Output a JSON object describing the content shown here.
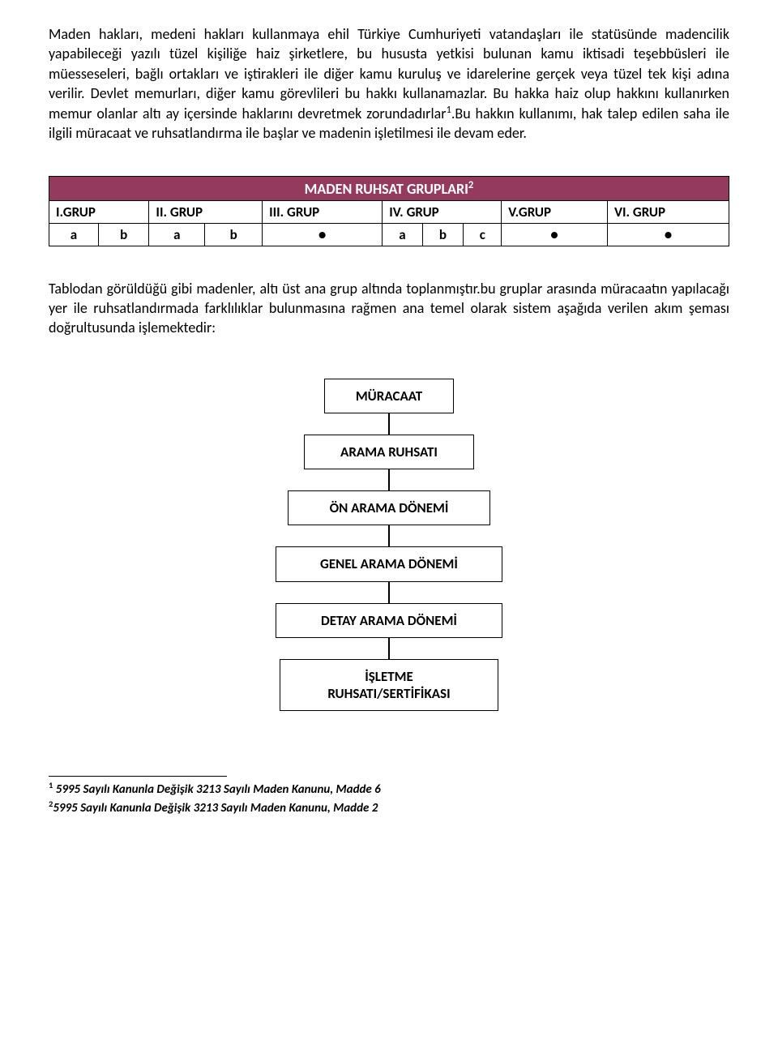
{
  "paragraph1": "Maden hakları, medeni hakları kullanmaya ehil Türkiye Cumhuriyeti vatandaşları ile statüsünde madencilik yapabileceği yazılı tüzel kişiliğe haiz şirketlere, bu hususta yetkisi bulunan kamu iktisadi teşebbüsleri ile müesseseleri, bağlı ortakları ve iştirakleri ile diğer kamu kuruluş ve idarelerine gerçek veya tüzel tek kişi adına verilir. Devlet memurları, diğer kamu görevlileri bu hakkı kullanamazlar. Bu hakka haiz olup hakkını kullanırken memur olanlar altı ay içersinde haklarını devretmek zorundadırlar",
  "paragraph1_tail": ".Bu hakkın kullanımı, hak talep edilen saha ile ilgili müracaat ve ruhsatlandırma ile başlar ve madenin işletilmesi ile devam eder.",
  "table": {
    "title": "MADEN RUHSAT GRUPLARI",
    "title_sup": "2",
    "header_bg": "#943a5f",
    "header_fg": "#ffffff",
    "groups": [
      "I.GRUP",
      "II. GRUP",
      "III. GRUP",
      "IV. GRUP",
      "V.GRUP",
      "VI. GRUP"
    ],
    "subrow": [
      "a",
      "b",
      "a",
      "b",
      "●",
      "a",
      "b",
      "c",
      "●",
      "●"
    ]
  },
  "paragraph2": "Tablodan görüldüğü gibi madenler, altı üst ana grup altında toplanmıştır.bu gruplar arasında müracaatın yapılacağı yer ile ruhsatlandırmada farklılıklar bulunmasına rağmen ana temel olarak sistem aşağıda verilen akım şeması doğrultusunda işlemektedir:",
  "flow": {
    "steps": [
      "MÜRACAAT",
      "ARAMA RUHSATI",
      "ÖN ARAMA DÖNEMİ",
      "GENEL ARAMA DÖNEMİ",
      "DETAY ARAMA DÖNEMİ",
      "İŞLETME\nRUHSATI/SERTİFİKASI"
    ],
    "widths": [
      160,
      210,
      250,
      280,
      280,
      270
    ]
  },
  "footnotes": {
    "fn1_sup": "1",
    "fn1": " 5995 Sayılı Kanunla Değişik 3213 Sayılı Maden Kanunu, Madde 6",
    "fn2_sup": "2",
    "fn2": "5995 Sayılı Kanunla Değişik 3213 Sayılı Maden Kanunu, Madde 2"
  },
  "style": {
    "body_fontsize": 18,
    "body_color": "#000000",
    "background": "#ffffff"
  }
}
